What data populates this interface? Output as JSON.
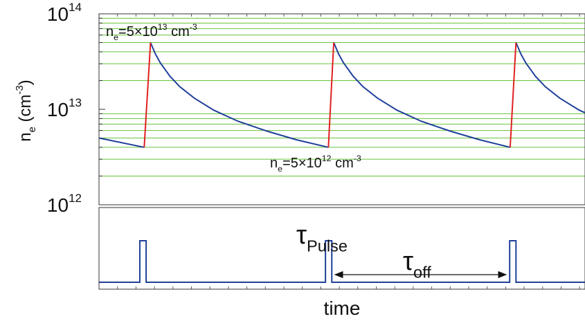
{
  "chart_data": [
    {
      "type": "line",
      "log_y": true,
      "y_label": [
        [
          "n",
          ""
        ],
        [
          "e",
          "sub"
        ],
        [
          " (cm",
          ""
        ],
        [
          "-3",
          "sup"
        ],
        [
          ")",
          ""
        ]
      ],
      "ylim": [
        1000000000000.0,
        100000000000000.0
      ],
      "yticks": [
        {
          "value": 1000000000000.0,
          "label": "10",
          "exponent": "12"
        },
        {
          "value": 10000000000000.0,
          "label": "10",
          "exponent": "13"
        },
        {
          "value": 100000000000000.0,
          "label": "10",
          "exponent": "14"
        }
      ],
      "minor_yticks": [
        2000000000000.0,
        3000000000000.0,
        4000000000000.0,
        5000000000000.0,
        6000000000000.0,
        7000000000000.0,
        8000000000000.0,
        9000000000000.0,
        20000000000000.0,
        30000000000000.0,
        40000000000000.0,
        50000000000000.0,
        60000000000000.0,
        70000000000000.0,
        80000000000000.0,
        90000000000000.0
      ],
      "grid": true,
      "grid_color": "#66c23a",
      "xlim": [
        0,
        100
      ],
      "series": [
        {
          "color": "#1f3f9a",
          "x": [
            0,
            9.3,
            10,
            10.6,
            11.6,
            12.6,
            14.6,
            16.6,
            19.6,
            23.6,
            28.6,
            34.6,
            40.6,
            47.2,
            47.8,
            48.3,
            49.3,
            50.3,
            52.3,
            54.3,
            57.3,
            61.3,
            66.3,
            72.3,
            78.3,
            84.6,
            85.2,
            85.8,
            86.8,
            87.8,
            89.8,
            91.8,
            94.8,
            98.8,
            100
          ],
          "values": [
            5000000000000.0,
            4000000000000.0,
            null,
            50000000000000.0,
            38000000000000.0,
            30700000000000.0,
            22200000000000.0,
            17300000000000.0,
            13100000000000.0,
            9800000000000.0,
            7500000000000.0,
            5900000000000.0,
            4800000000000.0,
            4000000000000.0,
            null,
            50000000000000.0,
            38000000000000.0,
            30700000000000.0,
            22200000000000.0,
            17300000000000.0,
            13100000000000.0,
            9800000000000.0,
            7500000000000.0,
            5900000000000.0,
            4800000000000.0,
            4000000000000.0,
            null,
            50000000000000.0,
            38000000000000.0,
            30700000000000.0,
            22200000000000.0,
            17300000000000.0,
            13100000000000.0,
            9800000000000.0,
            9200000000000.0
          ]
        },
        {
          "color": "#e02020",
          "x": [
            9.3,
            10.6,
            10.6,
            47.2,
            48.3,
            48.3,
            84.6,
            85.8
          ],
          "values": [
            4000000000000.0,
            50000000000000.0,
            null,
            4000000000000.0,
            50000000000000.0,
            null,
            4000000000000.0,
            50000000000000.0
          ]
        }
      ],
      "annotations": [
        [
          [
            "n",
            ""
          ],
          [
            "e",
            "sub"
          ],
          [
            "=5×10",
            ""
          ],
          [
            "13",
            "sup"
          ],
          [
            " cm",
            ""
          ],
          [
            "-3",
            "sup"
          ]
        ],
        [
          [
            "n",
            ""
          ],
          [
            "e",
            "sub"
          ],
          [
            "=5×10",
            ""
          ],
          [
            "12",
            "sup"
          ],
          [
            " cm",
            ""
          ],
          [
            "-3",
            "sup"
          ]
        ]
      ]
    },
    {
      "type": "line",
      "x_label": "time",
      "xlim": [
        0,
        100
      ],
      "ylim": [
        -0.167,
        1.8
      ],
      "series": [
        {
          "color": "#1f3f9a",
          "x": [
            0,
            8.4,
            8.4,
            9.7,
            9.7,
            46.6,
            46.6,
            47.9,
            47.9,
            84.5,
            84.5,
            85.8,
            85.8,
            100
          ],
          "values": [
            0,
            0,
            1,
            1,
            0,
            0,
            1,
            1,
            0,
            0,
            1,
            1,
            0,
            0
          ]
        }
      ],
      "annotations": [
        [
          [
            "τ",
            ""
          ],
          [
            "Pulse",
            "sub"
          ]
        ],
        [
          [
            "τ",
            ""
          ],
          [
            "off",
            "sub"
          ]
        ]
      ]
    }
  ]
}
